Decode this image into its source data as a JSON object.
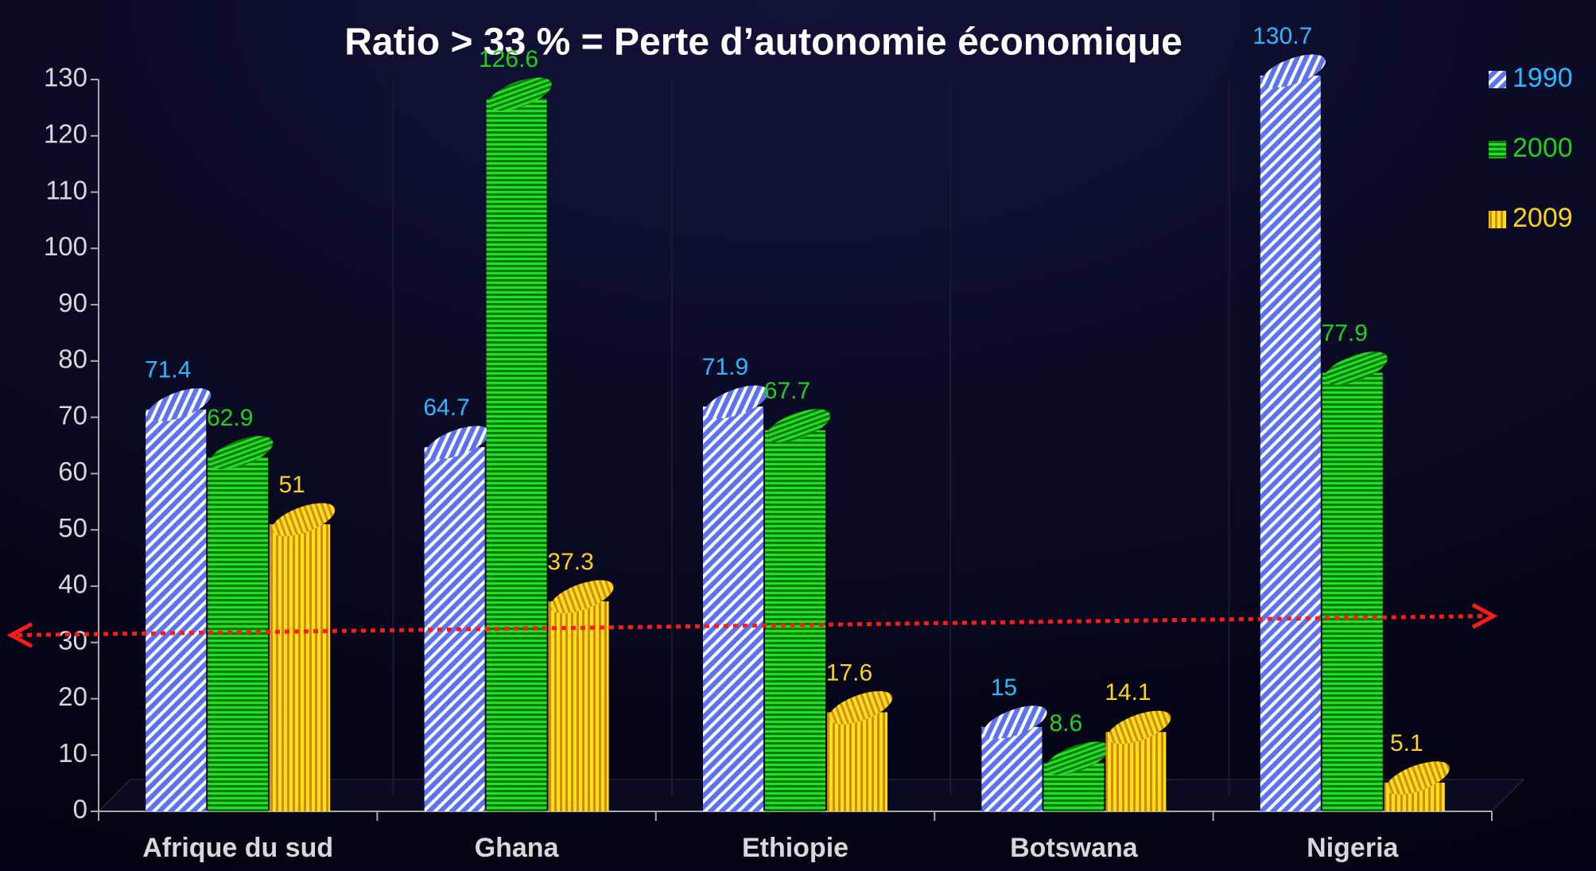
{
  "chart_data": {
    "type": "bar",
    "title": "Ratio > 33 % = Perte d’autonomie économique",
    "categories": [
      "Afrique du sud",
      "Ghana",
      "Ethiopie",
      "Botswana",
      "Nigeria"
    ],
    "series": [
      {
        "name": "1990",
        "color": "#6f86ff",
        "values": [
          71.4,
          64.7,
          71.9,
          15,
          130.7
        ]
      },
      {
        "name": "2000",
        "color": "#1fd11f",
        "values": [
          62.9,
          126.6,
          67.7,
          8.6,
          77.9
        ]
      },
      {
        "name": "2009",
        "color": "#ffd21a",
        "values": [
          51,
          37.3,
          17.6,
          14.1,
          5.1
        ]
      }
    ],
    "ylim": [
      0,
      130
    ],
    "yticks": [
      0,
      10,
      20,
      30,
      40,
      50,
      60,
      70,
      80,
      90,
      100,
      110,
      120,
      130
    ],
    "threshold": 33,
    "legend": "top-right"
  }
}
